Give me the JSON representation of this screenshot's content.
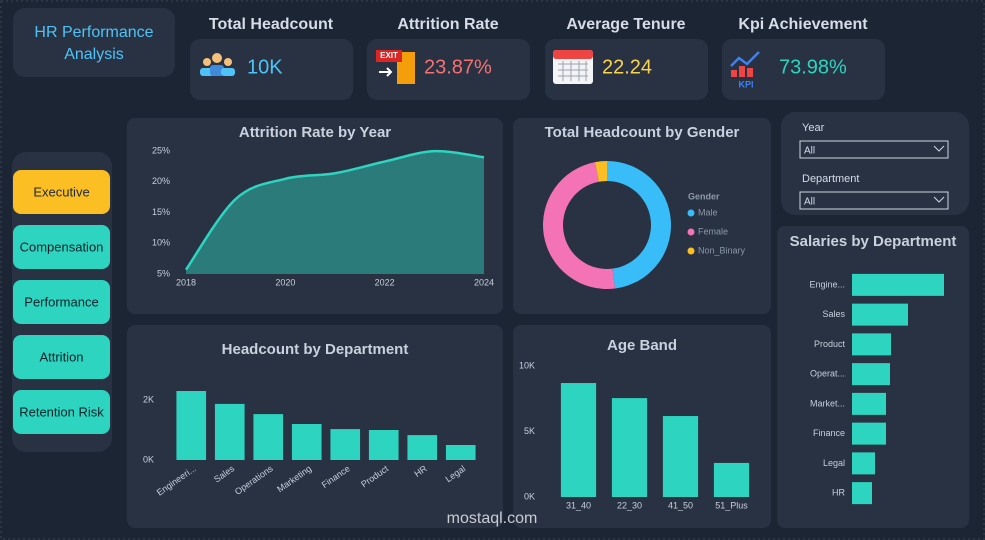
{
  "header": {
    "title": "HR Performance Analysis"
  },
  "kpis": [
    {
      "label": "Total Headcount",
      "value": "10K",
      "color": "#4fc3f7"
    },
    {
      "label": "Attrition Rate",
      "value": "23.87%",
      "color": "#f87171"
    },
    {
      "label": "Average Tenure",
      "value": "22.24",
      "color": "#fcd34d"
    },
    {
      "label": "Kpi Achievement",
      "value": "73.98%",
      "color": "#2dd4bf"
    }
  ],
  "nav": {
    "items": [
      "Executive",
      "Compensation",
      "Performance",
      "Attrition",
      "Retention Risk"
    ],
    "active": 0
  },
  "filters": [
    {
      "label": "Year",
      "value": "All"
    },
    {
      "label": "Department",
      "value": "All"
    }
  ],
  "watermark": "mostaql.com",
  "chart_data": [
    {
      "type": "area",
      "title": "Attrition Rate by Year",
      "x": [
        2018,
        2019,
        2020,
        2021,
        2022,
        2023,
        2024
      ],
      "values": [
        5.7,
        17.2,
        20.5,
        21.4,
        23.3,
        25,
        24
      ],
      "color": "#2dd4bf",
      "xlim": [
        2018,
        2024
      ],
      "xticks": [
        2018,
        2020,
        2022,
        2024
      ],
      "ylim": [
        5,
        26
      ],
      "yticks": [
        {
          "value": 5,
          "label": "5%"
        },
        {
          "value": 10,
          "label": "10%"
        },
        {
          "value": 15,
          "label": "15%"
        },
        {
          "value": 20,
          "label": "20%"
        },
        {
          "value": 25,
          "label": "25%"
        }
      ]
    },
    {
      "type": "donut",
      "title": "Total Headcount by Gender",
      "legend_title": "Gender",
      "categories": [
        "Male",
        "Female",
        "Non_Binary"
      ],
      "values": [
        4800,
        4900,
        300
      ],
      "colors": [
        "#38bdf8",
        "#f472b6",
        "#fbbf24"
      ]
    },
    {
      "type": "bar",
      "title": "Headcount by Department",
      "categories": [
        "Engineeri...",
        "Sales",
        "Operations",
        "Marketing",
        "Finance",
        "Product",
        "HR",
        "Legal"
      ],
      "values": [
        2300,
        1870,
        1530,
        1200,
        1030,
        1000,
        830,
        500
      ],
      "color": "#2dd4bf",
      "ylim": [
        0,
        3000
      ],
      "label_rotate": true,
      "yticks": [
        {
          "value": 0,
          "label": "0K"
        },
        {
          "value": 2000,
          "label": "2K"
        }
      ]
    },
    {
      "type": "bar",
      "title": "Age Band",
      "categories": [
        "31_40",
        "22_30",
        "41_50",
        "51_Plus"
      ],
      "values": [
        8700,
        7550,
        6180,
        2600
      ],
      "color": "#2dd4bf",
      "ylim": [
        0,
        10000
      ],
      "label_rotate": false,
      "yticks": [
        {
          "value": 0,
          "label": "0K"
        },
        {
          "value": 5000,
          "label": "5K"
        },
        {
          "value": 10000,
          "label": "10K"
        }
      ]
    },
    {
      "type": "hbar",
      "title": "Salaries by Department",
      "categories": [
        "Engine...",
        "Sales",
        "Product",
        "Operat...",
        "Market...",
        "Finance",
        "Legal",
        "HR"
      ],
      "values": [
        92,
        56,
        39,
        38,
        34,
        34,
        23,
        20
      ],
      "color": "#2dd4bf",
      "xlim": [
        0,
        100
      ]
    }
  ]
}
